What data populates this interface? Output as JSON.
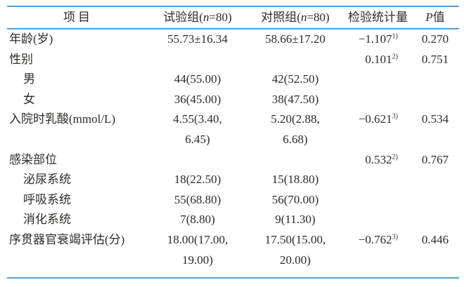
{
  "table": {
    "rule_color": "#4aa1d8",
    "text_color": "#2e2b28",
    "header": {
      "item": "项目",
      "trial_prefix": "试验组(",
      "n_symbol": "n",
      "trial_suffix": "=80)",
      "control_prefix": "对照组(",
      "control_suffix": "=80)",
      "statistic": "检验统计量",
      "p_symbol": "P",
      "p_suffix": "值"
    },
    "rows": [
      {
        "item": "年龄(岁)",
        "trial": "55.73±16.34",
        "control": "58.66±17.20",
        "stat": "−1.107",
        "stat_sup": "1)",
        "p": "0.270"
      },
      {
        "item": "性别",
        "stat": "0.101",
        "stat_sup": "2)",
        "p": "0.751"
      },
      {
        "item": "男",
        "trial": "44(55.00)",
        "control": "42(52.50)"
      },
      {
        "item": "女",
        "trial": "36(45.00)",
        "control": "38(47.50)"
      },
      {
        "item": "入院时乳酸(mmol/L)",
        "trial": "4.55(3.40,\n6.45)",
        "control": "5.20(2.88,\n6.68)",
        "stat": "−0.621",
        "stat_sup": "3)",
        "p": "0.534"
      },
      {
        "item": "感染部位",
        "stat": "0.532",
        "stat_sup": "2)",
        "p": "0.767"
      },
      {
        "item": "泌尿系统",
        "trial": "18(22.50)",
        "control": "15(18.80)"
      },
      {
        "item": "呼吸系统",
        "trial": "55(68.80)",
        "control": "56(70.00)"
      },
      {
        "item": "消化系统",
        "trial": "7(8.80)",
        "control": "9(11.30)"
      },
      {
        "item": "序贯器官衰竭评估(分)",
        "trial": "18.00(17.00,\n19.00)",
        "control": "17.50(15.00,\n20.00)",
        "stat": "−0.762",
        "stat_sup": "3)",
        "p": "0.446"
      }
    ]
  }
}
